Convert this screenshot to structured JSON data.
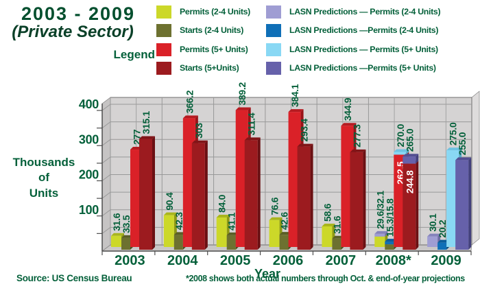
{
  "header": {
    "title_line1": "2003 - 2009",
    "title_line2": "(Private Sector)",
    "legend_label": "Legend"
  },
  "legend": {
    "left_column": [
      {
        "series": "permits24",
        "label": "Permits (2-4 Units)"
      },
      {
        "series": "starts24",
        "label": "Starts (2-4 Units)"
      },
      {
        "series": "permits5",
        "label": "Permits (5+ Units)"
      },
      {
        "series": "starts5",
        "label": "Starts (5+Units)"
      }
    ],
    "right_column": [
      {
        "series": "predPermits24",
        "label": "LASN Predictions — Permits (2-4 Units)"
      },
      {
        "series": "predStarts24",
        "label": "LASN Predictions —Permits (2-4 Units)"
      },
      {
        "series": "predPermits5",
        "label": "LASN Predictions — Permits (5+ Units)"
      },
      {
        "series": "predStarts5",
        "label": "LASN Predictions —Permits (5+ Units)"
      }
    ]
  },
  "footer": {
    "source": "Source: US Census Bureau",
    "note": "*2008 shows both actual numbers through Oct. & end-of-year projections"
  },
  "chart_data": {
    "type": "bar",
    "title": "2003 - 2009 (Private Sector)",
    "xlabel": "Year",
    "ylabel": "Thousands of Units",
    "ylabel_lines": [
      "Thousands",
      "of",
      "Units"
    ],
    "ylim": [
      0,
      400
    ],
    "yticks": [
      100,
      200,
      300,
      400
    ],
    "grid_step": 50,
    "grid": true,
    "legend_position": "top",
    "text_color": "#04603a",
    "plot_bg": "#d5d3d3",
    "categories": [
      "2003",
      "2004",
      "2005",
      "2006",
      "2007",
      "2008*",
      "2009"
    ],
    "palette": {
      "permits24": {
        "face": "#ccd829",
        "top": "#a9b51c",
        "side": "#8e9915"
      },
      "starts24": {
        "face": "#6d7130",
        "top": "#5a5e26",
        "side": "#494d1e"
      },
      "permits5": {
        "face": "#da2128",
        "top": "#b61b21",
        "side": "#991318"
      },
      "starts5": {
        "face": "#9c1b1f",
        "top": "#811518",
        "side": "#6b1013"
      },
      "predPermits24": {
        "face": "#9f9dd3",
        "top": "#8583bb",
        "side": "#6f6da5"
      },
      "predStarts24": {
        "face": "#0f6fb7",
        "top": "#0b5c99",
        "side": "#084a7d"
      },
      "predPermits5": {
        "face": "#89d8f4",
        "top": "#6fc3e2",
        "side": "#55aac9"
      },
      "predStarts5": {
        "face": "#6661aa",
        "top": "#534f92",
        "side": "#43407c"
      }
    },
    "groups": [
      {
        "year": "2003",
        "bars": [
          {
            "series": "permits24",
            "value": 31.6,
            "label": "31.6"
          },
          {
            "series": "starts24",
            "value": 33.5,
            "label": "33.5"
          },
          {
            "series": "permits5",
            "value": 277,
            "label": "277"
          },
          {
            "series": "starts5",
            "value": 315.1,
            "label": "315.1"
          }
        ]
      },
      {
        "year": "2004",
        "bars": [
          {
            "series": "permits24",
            "value": 90.4,
            "label": "90.4"
          },
          {
            "series": "starts24",
            "value": 42.3,
            "label": "42.3"
          },
          {
            "series": "permits5",
            "value": 366.2,
            "label": "366.2"
          },
          {
            "series": "starts5",
            "value": 303,
            "label": "303"
          }
        ]
      },
      {
        "year": "2005",
        "bars": [
          {
            "series": "permits24",
            "value": 84.0,
            "label": "84.0"
          },
          {
            "series": "starts24",
            "value": 41.1,
            "label": "41.1"
          },
          {
            "series": "permits5",
            "value": 389.2,
            "label": "389.2"
          },
          {
            "series": "starts5",
            "value": 311.4,
            "label": "311.4"
          }
        ]
      },
      {
        "year": "2006",
        "bars": [
          {
            "series": "permits24",
            "value": 76.6,
            "label": "76.6"
          },
          {
            "series": "starts24",
            "value": 42.6,
            "label": "42.6"
          },
          {
            "series": "permits5",
            "value": 384.1,
            "label": "384.1"
          },
          {
            "series": "starts5",
            "value": 293.4,
            "label": "293.4"
          }
        ]
      },
      {
        "year": "2007",
        "bars": [
          {
            "series": "permits24",
            "value": 58.6,
            "label": "58.6"
          },
          {
            "series": "starts24",
            "value": 31.6,
            "label": "31.6"
          },
          {
            "series": "permits5",
            "value": 344.9,
            "label": "344.9"
          },
          {
            "series": "starts5",
            "value": 277.3,
            "label": "277.3"
          }
        ]
      },
      {
        "year": "2008*",
        "bars": [
          {
            "series": "permits24",
            "value": 29.6,
            "label": "29.6/32.1",
            "cap": {
              "series": "predPermits24",
              "value": 32.1
            }
          },
          {
            "series": "starts24",
            "value": 15.3,
            "label": "15.3/15.8",
            "cap": {
              "series": "predStarts24",
              "value": 15.8
            }
          },
          {
            "series": "permits5",
            "value": 262.5,
            "inner_label": "262.5",
            "cap": {
              "series": "predPermits5",
              "value": 270.0,
              "label": "270.0"
            }
          },
          {
            "series": "starts5",
            "value": 244.8,
            "inner_label": "244.8",
            "cap": {
              "series": "predStarts5",
              "value": 265.0,
              "label": "265.0"
            }
          }
        ]
      },
      {
        "year": "2009",
        "bars": [
          {
            "series": "predPermits24",
            "value": 30.1,
            "label": "30.1"
          },
          {
            "series": "predStarts24",
            "value": 20.2,
            "label": "20.2"
          },
          {
            "series": "predPermits5",
            "value": 275.0,
            "label": "275.0"
          },
          {
            "series": "predStarts5",
            "value": 255.0,
            "label": "255.0"
          }
        ]
      }
    ]
  }
}
